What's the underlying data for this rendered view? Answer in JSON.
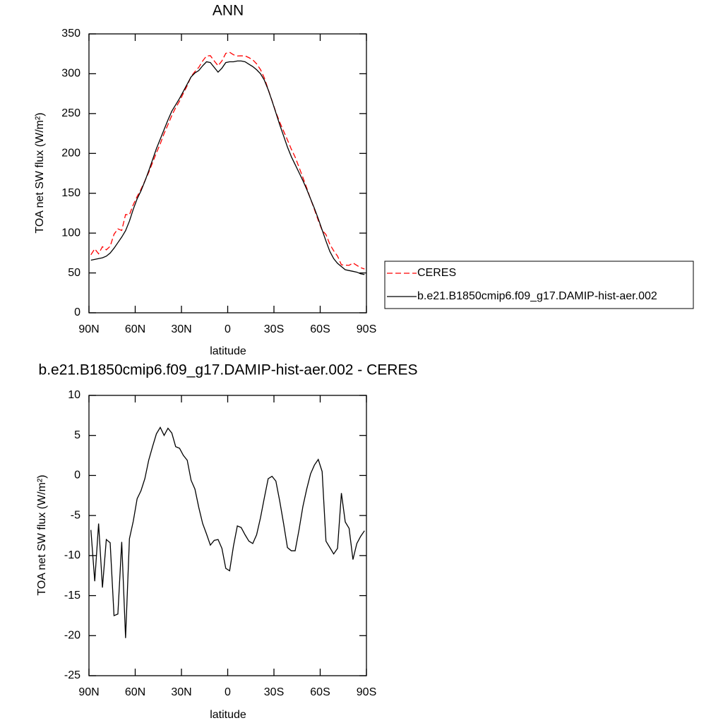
{
  "chart_data": [
    {
      "type": "line",
      "title": "ANN",
      "xlabel": "latitude",
      "ylabel": "TOA net SW flux (W/m²)",
      "x": [
        88.75,
        86.25,
        83.75,
        81.25,
        78.75,
        76.25,
        73.75,
        71.25,
        68.75,
        66.25,
        63.75,
        61.25,
        58.75,
        56.25,
        53.75,
        51.25,
        48.75,
        46.25,
        43.75,
        41.25,
        38.75,
        36.25,
        33.75,
        31.25,
        28.75,
        26.25,
        23.75,
        21.25,
        18.75,
        16.25,
        13.75,
        11.25,
        8.75,
        6.25,
        3.75,
        1.25,
        -1.25,
        -3.75,
        -6.25,
        -8.75,
        -11.25,
        -13.75,
        -16.25,
        -18.75,
        -21.25,
        -23.75,
        -26.25,
        -28.75,
        -31.25,
        -33.75,
        -36.25,
        -38.75,
        -41.25,
        -43.75,
        -46.25,
        -48.75,
        -51.25,
        -53.75,
        -56.25,
        -58.75,
        -61.25,
        -63.75,
        -66.25,
        -68.75,
        -71.25,
        -73.75,
        -76.25,
        -78.75,
        -81.25,
        -83.75,
        -86.25,
        -88.75
      ],
      "series": [
        {
          "name": "CERES",
          "color": "#ff0000",
          "dashed": true,
          "values": [
            72.8,
            80.2,
            74,
            83,
            79,
            83.4,
            98.5,
            105.3,
            103.3,
            123.3,
            122.9,
            135.7,
            145.9,
            154.9,
            165.4,
            176.1,
            188.4,
            200.8,
            212,
            225,
            236.1,
            247.7,
            257.4,
            265.6,
            275.5,
            285.1,
            296.6,
            302.7,
            308,
            316,
            322.3,
            322.7,
            316.1,
            310,
            316.1,
            325.6,
            326.9,
            323.8,
            322.3,
            322.5,
            322.4,
            320.2,
            317.5,
            312.4,
            305.3,
            294.8,
            280.4,
            266.1,
            251.7,
            239.2,
            228,
            217,
            205.4,
            195.4,
            182.8,
            169.9,
            156.7,
            142.8,
            129.7,
            116,
            103.5,
            98.2,
            86,
            77.8,
            71.1,
            60.2,
            59.8,
            59.6,
            62.5,
            59.5,
            56.6,
            54.9
          ]
        },
        {
          "name": "b.e21.B1850cmip6.f09_g17.DAMIP-hist-aer.002",
          "color": "#000000",
          "dashed": false,
          "values": [
            66,
            67,
            68,
            69,
            71,
            75,
            81,
            88,
            95,
            103,
            115,
            130,
            143,
            153,
            165,
            178,
            192,
            206,
            218,
            230,
            242,
            253,
            261,
            269,
            278,
            287,
            296,
            301,
            304,
            310,
            315,
            314,
            308,
            302,
            307,
            314,
            315,
            315,
            316,
            316,
            315,
            312,
            309,
            305,
            300,
            292,
            280,
            266,
            251,
            236,
            222,
            208,
            196,
            186,
            176,
            166,
            155,
            143,
            131,
            118,
            104,
            90,
            77,
            68,
            62,
            58,
            54,
            53,
            52,
            51,
            49,
            48
          ]
        }
      ],
      "xlim": [
        90,
        -90
      ],
      "xticks": [
        {
          "value": 90,
          "label": "90N"
        },
        {
          "value": 60,
          "label": "60N"
        },
        {
          "value": 30,
          "label": "30N"
        },
        0,
        {
          "value": -30,
          "label": "30S"
        },
        {
          "value": -60,
          "label": "60S"
        },
        {
          "value": -90,
          "label": "90S"
        }
      ],
      "ylim": [
        0,
        350
      ],
      "yticks": [
        0,
        50,
        100,
        150,
        200,
        250,
        300,
        350
      ],
      "legend": "right"
    },
    {
      "type": "line",
      "title": "b.e21.B1850cmip6.f09_g17.DAMIP-hist-aer.002 - CERES",
      "xlabel": "latitude",
      "ylabel": "TOA net SW flux (W/m²)",
      "x": [
        88.75,
        86.25,
        83.75,
        81.25,
        78.75,
        76.25,
        73.75,
        71.25,
        68.75,
        66.25,
        63.75,
        61.25,
        58.75,
        56.25,
        53.75,
        51.25,
        48.75,
        46.25,
        43.75,
        41.25,
        38.75,
        36.25,
        33.75,
        31.25,
        28.75,
        26.25,
        23.75,
        21.25,
        18.75,
        16.25,
        13.75,
        11.25,
        8.75,
        6.25,
        3.75,
        1.25,
        -1.25,
        -3.75,
        -6.25,
        -8.75,
        -11.25,
        -13.75,
        -16.25,
        -18.75,
        -21.25,
        -23.75,
        -26.25,
        -28.75,
        -31.25,
        -33.75,
        -36.25,
        -38.75,
        -41.25,
        -43.75,
        -46.25,
        -48.75,
        -51.25,
        -53.75,
        -56.25,
        -58.75,
        -61.25,
        -63.75,
        -66.25,
        -68.75,
        -71.25,
        -73.75,
        -76.25,
        -78.75,
        -81.25,
        -83.75,
        -86.25,
        -88.75
      ],
      "values": [
        -6.8,
        -13.2,
        -6.0,
        -14.0,
        -8.0,
        -8.4,
        -17.5,
        -17.3,
        -8.3,
        -20.3,
        -7.9,
        -5.7,
        -2.9,
        -1.9,
        -0.4,
        1.9,
        3.6,
        5.2,
        6.0,
        5.0,
        5.9,
        5.3,
        3.6,
        3.4,
        2.5,
        1.9,
        -0.6,
        -1.7,
        -4.0,
        -6.0,
        -7.3,
        -8.7,
        -8.1,
        -8.0,
        -9.1,
        -11.6,
        -11.9,
        -8.8,
        -6.3,
        -6.5,
        -7.4,
        -8.2,
        -8.5,
        -7.4,
        -5.3,
        -2.8,
        -0.4,
        -0.1,
        -0.7,
        -3.2,
        -6.0,
        -9.0,
        -9.4,
        -9.4,
        -6.8,
        -3.9,
        -1.7,
        0.2,
        1.3,
        2.0,
        0.5,
        -8.2,
        -9.0,
        -9.8,
        -9.1,
        -2.2,
        -5.8,
        -6.6,
        -10.5,
        -8.5,
        -7.6,
        -6.9
      ],
      "color": "#000000",
      "xlim": [
        90,
        -90
      ],
      "xticks": [
        {
          "value": 90,
          "label": "90N"
        },
        {
          "value": 60,
          "label": "60N"
        },
        {
          "value": 30,
          "label": "30N"
        },
        0,
        {
          "value": -30,
          "label": "30S"
        },
        {
          "value": -60,
          "label": "60S"
        },
        {
          "value": -90,
          "label": "90S"
        }
      ],
      "ylim": [
        -25,
        10
      ],
      "yticks": [
        -25,
        -20,
        -15,
        -10,
        -5,
        0,
        5,
        10
      ]
    }
  ]
}
